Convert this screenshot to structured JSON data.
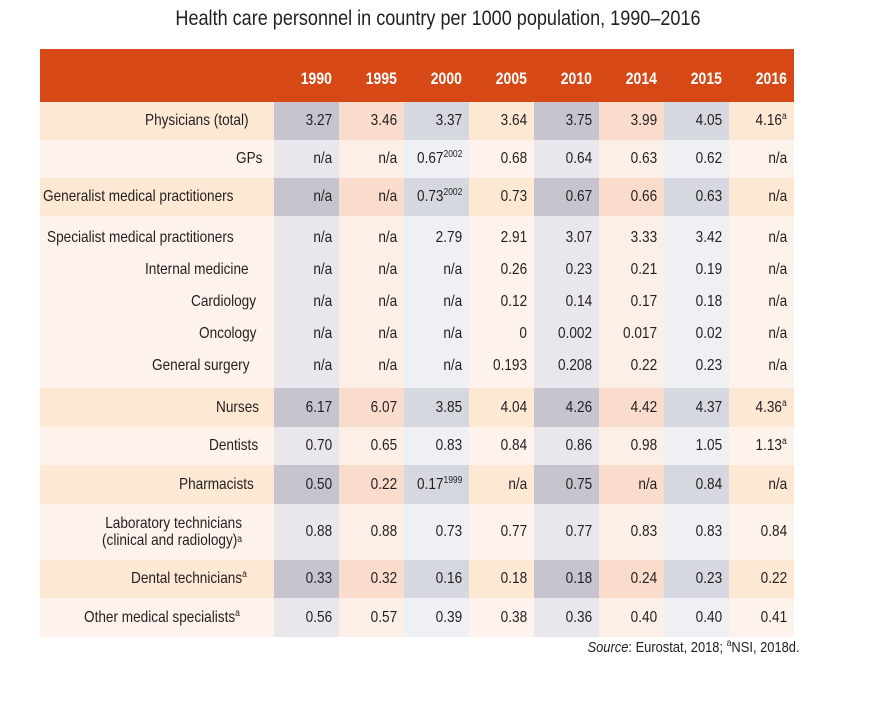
{
  "title": "Health care personnel in country per 1000 population, 1990–2016",
  "table": {
    "years": [
      "1990",
      "1995",
      "2000",
      "2005",
      "2010",
      "2014",
      "2015",
      "2016"
    ],
    "rows": [
      {
        "label": "Physicians (total)",
        "label_sup": "",
        "indent": false,
        "values": [
          {
            "v": "3.27",
            "s": ""
          },
          {
            "v": "3.46",
            "s": ""
          },
          {
            "v": "3.37",
            "s": ""
          },
          {
            "v": "3.64",
            "s": ""
          },
          {
            "v": "3.75",
            "s": ""
          },
          {
            "v": "3.99",
            "s": ""
          },
          {
            "v": "4.05",
            "s": ""
          },
          {
            "v": "4.16",
            "s": "a"
          }
        ]
      },
      {
        "label": "GPs",
        "label_sup": "",
        "indent": false,
        "values": [
          {
            "v": "n/a",
            "s": ""
          },
          {
            "v": "n/a",
            "s": ""
          },
          {
            "v": "0.67",
            "s": "2002"
          },
          {
            "v": "0.68",
            "s": ""
          },
          {
            "v": "0.64",
            "s": ""
          },
          {
            "v": "0.63",
            "s": ""
          },
          {
            "v": "0.62",
            "s": ""
          },
          {
            "v": "n/a",
            "s": ""
          }
        ]
      },
      {
        "label": "Generalist medical practitioners",
        "label_sup": "",
        "indent": false,
        "values": [
          {
            "v": "n/a",
            "s": ""
          },
          {
            "v": "n/a",
            "s": ""
          },
          {
            "v": "0.73",
            "s": "2002"
          },
          {
            "v": "0.73",
            "s": ""
          },
          {
            "v": "0.67",
            "s": ""
          },
          {
            "v": "0.66",
            "s": ""
          },
          {
            "v": "0.63",
            "s": ""
          },
          {
            "v": "n/a",
            "s": ""
          }
        ]
      },
      {
        "label": "Specialist medical practitioners",
        "label_sup": "",
        "indent": false,
        "values": [
          {
            "v": "n/a",
            "s": ""
          },
          {
            "v": "n/a",
            "s": ""
          },
          {
            "v": "2.79",
            "s": ""
          },
          {
            "v": "2.91",
            "s": ""
          },
          {
            "v": "3.07",
            "s": ""
          },
          {
            "v": "3.33",
            "s": ""
          },
          {
            "v": "3.42",
            "s": ""
          },
          {
            "v": "n/a",
            "s": ""
          }
        ]
      },
      {
        "label": "Internal medicine",
        "label_sup": "",
        "indent": true,
        "values": [
          {
            "v": "n/a",
            "s": ""
          },
          {
            "v": "n/a",
            "s": ""
          },
          {
            "v": "n/a",
            "s": ""
          },
          {
            "v": "0.26",
            "s": ""
          },
          {
            "v": "0.23",
            "s": ""
          },
          {
            "v": "0.21",
            "s": ""
          },
          {
            "v": "0.19",
            "s": ""
          },
          {
            "v": "n/a",
            "s": ""
          }
        ]
      },
      {
        "label": "Cardiology",
        "label_sup": "",
        "indent": true,
        "values": [
          {
            "v": "n/a",
            "s": ""
          },
          {
            "v": "n/a",
            "s": ""
          },
          {
            "v": "n/a",
            "s": ""
          },
          {
            "v": "0.12",
            "s": ""
          },
          {
            "v": "0.14",
            "s": ""
          },
          {
            "v": "0.17",
            "s": ""
          },
          {
            "v": "0.18",
            "s": ""
          },
          {
            "v": "n/a",
            "s": ""
          }
        ]
      },
      {
        "label": "Oncology",
        "label_sup": "",
        "indent": true,
        "values": [
          {
            "v": "n/a",
            "s": ""
          },
          {
            "v": "n/a",
            "s": ""
          },
          {
            "v": "n/a",
            "s": ""
          },
          {
            "v": "0",
            "s": ""
          },
          {
            "v": "0.002",
            "s": ""
          },
          {
            "v": "0.017",
            "s": ""
          },
          {
            "v": "0.02",
            "s": ""
          },
          {
            "v": "n/a",
            "s": ""
          }
        ]
      },
      {
        "label": "General surgery",
        "label_sup": "",
        "indent": true,
        "values": [
          {
            "v": "n/a",
            "s": ""
          },
          {
            "v": "n/a",
            "s": ""
          },
          {
            "v": "n/a",
            "s": ""
          },
          {
            "v": "0.193",
            "s": ""
          },
          {
            "v": "0.208",
            "s": ""
          },
          {
            "v": "0.22",
            "s": ""
          },
          {
            "v": "0.23",
            "s": ""
          },
          {
            "v": "n/a",
            "s": ""
          }
        ]
      },
      {
        "label": "Nurses",
        "label_sup": "",
        "indent": false,
        "values": [
          {
            "v": "6.17",
            "s": ""
          },
          {
            "v": "6.07",
            "s": ""
          },
          {
            "v": "3.85",
            "s": ""
          },
          {
            "v": "4.04",
            "s": ""
          },
          {
            "v": "4.26",
            "s": ""
          },
          {
            "v": "4.42",
            "s": ""
          },
          {
            "v": "4.37",
            "s": ""
          },
          {
            "v": "4.36",
            "s": "a"
          }
        ]
      },
      {
        "label": "Dentists",
        "label_sup": "",
        "indent": false,
        "values": [
          {
            "v": "0.70",
            "s": ""
          },
          {
            "v": "0.65",
            "s": ""
          },
          {
            "v": "0.83",
            "s": ""
          },
          {
            "v": "0.84",
            "s": ""
          },
          {
            "v": "0.86",
            "s": ""
          },
          {
            "v": "0.98",
            "s": ""
          },
          {
            "v": "1.05",
            "s": ""
          },
          {
            "v": "1.13",
            "s": "a"
          }
        ]
      },
      {
        "label": "Pharmacists",
        "label_sup": "",
        "indent": false,
        "values": [
          {
            "v": "0.50",
            "s": ""
          },
          {
            "v": "0.22",
            "s": ""
          },
          {
            "v": "0.17",
            "s": "1999"
          },
          {
            "v": "n/a",
            "s": ""
          },
          {
            "v": "0.75",
            "s": ""
          },
          {
            "v": "n/a",
            "s": ""
          },
          {
            "v": "0.84",
            "s": ""
          },
          {
            "v": "n/a",
            "s": ""
          }
        ]
      },
      {
        "label": "Laboratory technicians",
        "label_line2": "(clinical and radiology)",
        "label_sup": "a",
        "indent": false,
        "values": [
          {
            "v": "0.88",
            "s": ""
          },
          {
            "v": "0.88",
            "s": ""
          },
          {
            "v": "0.73",
            "s": ""
          },
          {
            "v": "0.77",
            "s": ""
          },
          {
            "v": "0.77",
            "s": ""
          },
          {
            "v": "0.83",
            "s": ""
          },
          {
            "v": "0.83",
            "s": ""
          },
          {
            "v": "0.84",
            "s": ""
          }
        ]
      },
      {
        "label": "Dental technicians",
        "label_sup": "a",
        "indent": false,
        "values": [
          {
            "v": "0.33",
            "s": ""
          },
          {
            "v": "0.32",
            "s": ""
          },
          {
            "v": "0.16",
            "s": ""
          },
          {
            "v": "0.18",
            "s": ""
          },
          {
            "v": "0.18",
            "s": ""
          },
          {
            "v": "0.24",
            "s": ""
          },
          {
            "v": "0.23",
            "s": ""
          },
          {
            "v": "0.22",
            "s": ""
          }
        ]
      },
      {
        "label": "Other medical specialists",
        "label_sup": "a",
        "indent": false,
        "values": [
          {
            "v": "0.56",
            "s": ""
          },
          {
            "v": "0.57",
            "s": ""
          },
          {
            "v": "0.39",
            "s": ""
          },
          {
            "v": "0.38",
            "s": ""
          },
          {
            "v": "0.36",
            "s": ""
          },
          {
            "v": "0.40",
            "s": ""
          },
          {
            "v": "0.40",
            "s": ""
          },
          {
            "v": "0.41",
            "s": ""
          }
        ]
      }
    ]
  },
  "source": {
    "label": "Source",
    "text": ": Eurostat, 2018; ",
    "sup": "a",
    "text2": "NSI, 2018d."
  },
  "colors": {
    "header_bg": "#d64916",
    "header_text": "#ffffff"
  }
}
